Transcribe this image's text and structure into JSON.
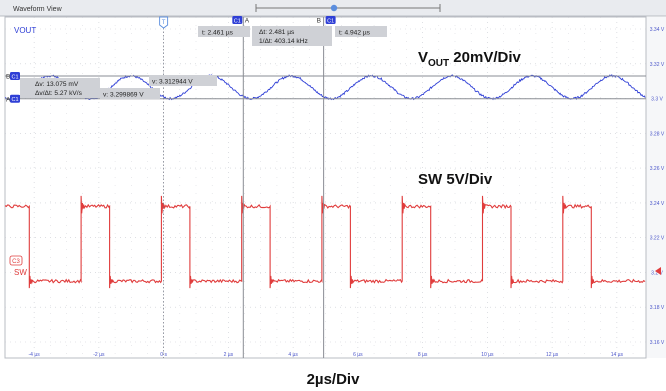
{
  "window": {
    "title": "Waveform View",
    "colors": {
      "titlebar": "#e9ebef",
      "plot_bg": "#ffffff",
      "grid": "#c9ccd2",
      "vout": "#2f3fd6",
      "sw": "#e03c3c",
      "cursor_badge": "#2f3fd6",
      "readout_bg": "#cfd1d6"
    }
  },
  "labels": {
    "vout_channel": "VOUT",
    "sw_channel": "SW",
    "vout_scale_main": "V",
    "vout_scale_sub": "OUT",
    "vout_scale_rest": " 20mV/Div",
    "sw_scale": "SW 5V/Div",
    "timebase": "2µs/Div",
    "cursor_a": "A",
    "cursor_b": "B",
    "cursor_badge": "C1",
    "sw_badge": "C3",
    "trigger_marker": "T"
  },
  "readouts": {
    "t_a": "t: 2.461 µs",
    "dt": "Δt: 2.481 µs",
    "inv_dt": "1/Δt: 403.14 kHz",
    "t_b": "t: 4.942 µs",
    "dv": "Δv: 13.075 mV",
    "dv_dt": "Δv/Δt: 5.27 kV/s",
    "v_b": "v: 3.312944 V",
    "v_a": "v: 3.299869 V"
  },
  "chart_data": [
    {
      "type": "line",
      "title": "",
      "xlabel": "2µs/Div",
      "ylabel": "",
      "x_tick_labels": [
        "-4 µs",
        "-2 µs",
        "0 s",
        "2 µs",
        "4 µs",
        "6 µs",
        "8 µs",
        "10 µs",
        "12 µs",
        "14 µs"
      ],
      "x_ticks_us": [
        -4,
        -2,
        0,
        2,
        4,
        6,
        8,
        10,
        12,
        14
      ],
      "xlim_us": [
        -4.9,
        14.9
      ],
      "y_tick_labels": [
        "3.34 V",
        "3.32 V",
        "3.3 V",
        "3.28 V",
        "3.26 V",
        "3.24 V",
        "3.22 V",
        "3.2 V",
        "3.18 V",
        "3.16 V"
      ],
      "ylim_v": [
        3.16,
        3.34
      ],
      "grid": true,
      "series": [
        {
          "name": "VOUT",
          "units": "V",
          "period_us": 2.48,
          "center_v": 3.3065,
          "ripple_pp_mv": 13.075,
          "x_us": [
            -4.9,
            -4.12,
            -2.88,
            -1.64,
            -0.4,
            0.84,
            2.08,
            3.32,
            4.56,
            5.8,
            7.04,
            8.28,
            9.52,
            10.76,
            12.0,
            13.24,
            14.48,
            14.9
          ],
          "y_v": [
            3.3045,
            3.3065,
            3.3129,
            3.3065,
            3.2999,
            3.3065,
            3.3129,
            3.3065,
            3.2999,
            3.3065,
            3.3129,
            3.3065,
            3.2999,
            3.3065,
            3.3129,
            3.3065,
            3.2999,
            3.3015
          ]
        },
        {
          "name": "SW",
          "units": "V",
          "scale": "5V/Div",
          "high_v": 3.238,
          "low_v": 3.195,
          "period_us": 2.48,
          "rise_times_us": [
            -2.55,
            -0.07,
            2.41,
            4.89,
            7.37,
            9.85,
            12.33
          ],
          "fall_times_us": [
            -4.15,
            -1.67,
            0.81,
            3.29,
            5.77,
            8.25,
            10.73,
            13.21
          ],
          "initial_level": "high"
        }
      ],
      "cursors": {
        "a_time_us": 2.461,
        "b_time_us": 4.942,
        "a_voltage_v": 3.299869,
        "b_voltage_v": 3.312944
      }
    }
  ]
}
